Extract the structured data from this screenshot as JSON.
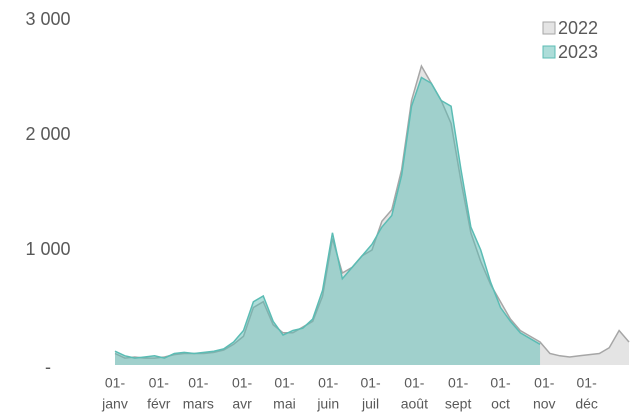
{
  "chart_data": {
    "type": "area",
    "x": [
      1,
      8,
      15,
      22,
      29,
      36,
      43,
      50,
      57,
      64,
      71,
      78,
      85,
      92,
      99,
      106,
      113,
      120,
      127,
      134,
      141,
      148,
      155,
      162,
      169,
      176,
      183,
      190,
      197,
      204,
      211,
      218,
      225,
      232,
      239,
      246,
      253,
      260,
      267,
      274,
      281,
      288,
      295,
      302,
      309,
      316,
      323,
      330,
      337,
      344,
      351,
      358,
      365
    ],
    "series": [
      {
        "name": "2022",
        "color": "#a6a6a6",
        "values": [
          100,
          60,
          70,
          60,
          60,
          70,
          90,
          100,
          100,
          100,
          110,
          130,
          180,
          250,
          500,
          550,
          350,
          280,
          280,
          330,
          380,
          600,
          1100,
          800,
          850,
          950,
          1000,
          1250,
          1350,
          1700,
          2300,
          2600,
          2450,
          2300,
          2100,
          1600,
          1150,
          900,
          700,
          550,
          400,
          300,
          250,
          200,
          100,
          80,
          70,
          80,
          90,
          100,
          150,
          300,
          200
        ]
      },
      {
        "name": "2023",
        "color": "#5bbcb4",
        "values": [
          120,
          80,
          60,
          70,
          80,
          60,
          100,
          110,
          100,
          110,
          120,
          140,
          200,
          300,
          550,
          600,
          380,
          260,
          300,
          320,
          400,
          650,
          1150,
          750,
          850,
          950,
          1050,
          1200,
          1300,
          1650,
          2250,
          2500,
          2450,
          2300,
          2250,
          1700,
          1200,
          1000,
          720,
          500,
          380,
          280,
          230,
          180,
          null,
          null,
          null,
          null,
          null,
          null,
          null,
          null,
          null
        ]
      }
    ],
    "xlim": [
      1,
      365
    ],
    "xticks": [
      {
        "value": 1,
        "label": [
          "01-",
          "janv"
        ]
      },
      {
        "value": 32,
        "label": [
          "01-",
          "févr"
        ]
      },
      {
        "value": 60,
        "label": [
          "01-",
          "mars"
        ]
      },
      {
        "value": 91,
        "label": [
          "01-",
          "avr"
        ]
      },
      {
        "value": 121,
        "label": [
          "01-",
          "mai"
        ]
      },
      {
        "value": 152,
        "label": [
          "01-",
          "juin"
        ]
      },
      {
        "value": 182,
        "label": [
          "01-",
          "juil"
        ]
      },
      {
        "value": 213,
        "label": [
          "01-",
          "août"
        ]
      },
      {
        "value": 244,
        "label": [
          "01-",
          "sept"
        ]
      },
      {
        "value": 274,
        "label": [
          "01-",
          "oct"
        ]
      },
      {
        "value": 305,
        "label": [
          "01-",
          "nov"
        ]
      },
      {
        "value": 335,
        "label": [
          "01-",
          "déc"
        ]
      }
    ],
    "ylim": [
      0,
      3000
    ],
    "yticks": [
      {
        "value": 0,
        "label": "-"
      },
      {
        "value": 1000,
        "label": "1 000"
      },
      {
        "value": 2000,
        "label": "2 000"
      },
      {
        "value": 3000,
        "label": "3 000"
      }
    ],
    "legend": "top-right"
  }
}
